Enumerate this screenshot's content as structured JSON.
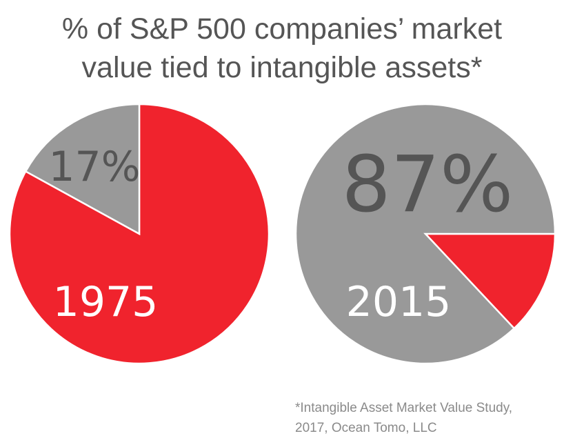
{
  "title": {
    "line1": "% of S&P 500 companies’ market",
    "line2": "value tied to intangible assets*"
  },
  "colors": {
    "intangible": "#999999",
    "tangible": "#f0232d",
    "title_text": "#555555",
    "pct_label_text": "#555555",
    "year_label_text": "#ffffff",
    "note_text": "#8a8a8a",
    "slice_border": "#ffffff"
  },
  "chart_data": [
    {
      "type": "pie",
      "year_label": "1975",
      "slices": [
        {
          "category": "intangible",
          "value": 17,
          "label": "17%"
        },
        {
          "category": "tangible",
          "value": 83,
          "label": ""
        }
      ]
    },
    {
      "type": "pie",
      "year_label": "2015",
      "slices": [
        {
          "category": "intangible",
          "value": 87,
          "label": "87%"
        },
        {
          "category": "tangible",
          "value": 13,
          "label": ""
        }
      ]
    }
  ],
  "source_note": {
    "line1": "*Intangible Asset Market Value Study,",
    "line2": "2017, Ocean Tomo, LLC"
  }
}
